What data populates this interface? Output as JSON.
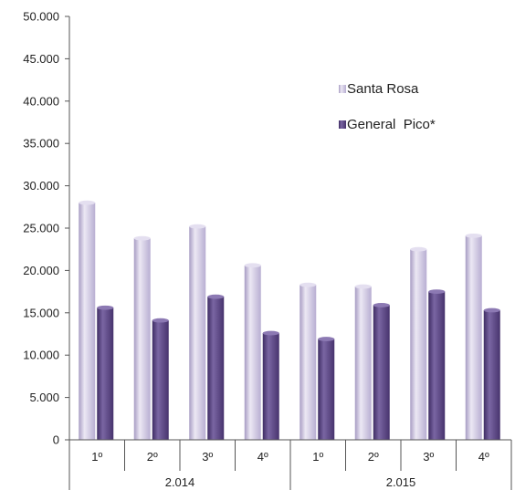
{
  "chart_data": {
    "type": "bar",
    "y_ticks": [
      "0",
      "5.000",
      "10.000",
      "15.000",
      "20.000",
      "25.000",
      "30.000",
      "35.000",
      "40.000",
      "45.000",
      "50.000"
    ],
    "ylim": [
      0,
      50000
    ],
    "grid": false,
    "legend_position": "top-right",
    "groups": [
      {
        "label": "2.014",
        "categories": [
          "1º",
          "2º",
          "3º",
          "4º"
        ]
      },
      {
        "label": "2.015",
        "categories": [
          "1º",
          "2º",
          "3º",
          "4º"
        ]
      }
    ],
    "series": [
      {
        "name": "Santa Rosa",
        "color": "#c9c1dd",
        "values": [
          28000,
          23800,
          25200,
          20600,
          18300,
          18100,
          22500,
          24100
        ]
      },
      {
        "name": "General  Pico*",
        "color": "#5b4584",
        "values": [
          15600,
          14100,
          16900,
          12600,
          11900,
          15900,
          17500,
          15300
        ]
      }
    ]
  }
}
